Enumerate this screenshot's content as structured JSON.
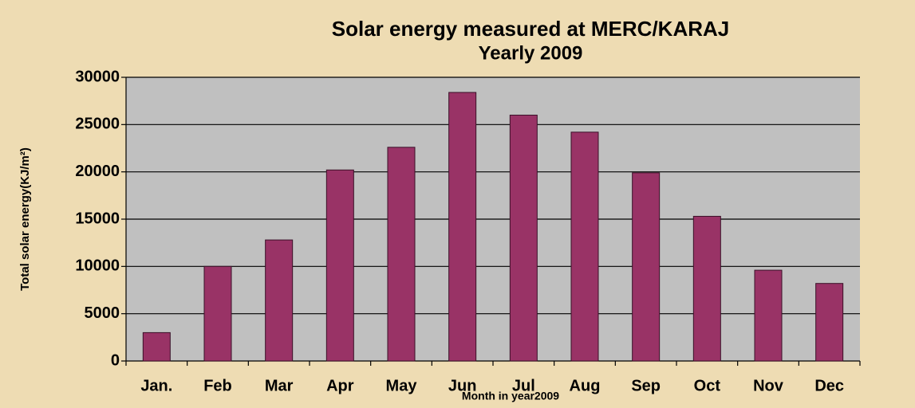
{
  "chart_data": {
    "type": "bar",
    "title": "Solar energy measured at MERC/KARAJ",
    "subtitle": "Yearly 2009",
    "x_label": "Month in year2009",
    "y_label": "Total solar energy(KJ/m²)",
    "categories": [
      "Jan.",
      "Feb",
      "Mar",
      "Apr",
      "May",
      "Jun",
      "Jul",
      "Aug",
      "Sep",
      "Oct",
      "Nov",
      "Dec"
    ],
    "values": [
      3000,
      10000,
      12800,
      20200,
      22600,
      28400,
      26000,
      24200,
      19900,
      15300,
      9600,
      8200
    ],
    "color": "#993366",
    "ylim": [
      0,
      30000
    ],
    "yticks": [
      0,
      5000,
      10000,
      15000,
      20000,
      25000,
      30000
    ],
    "grid": true
  }
}
